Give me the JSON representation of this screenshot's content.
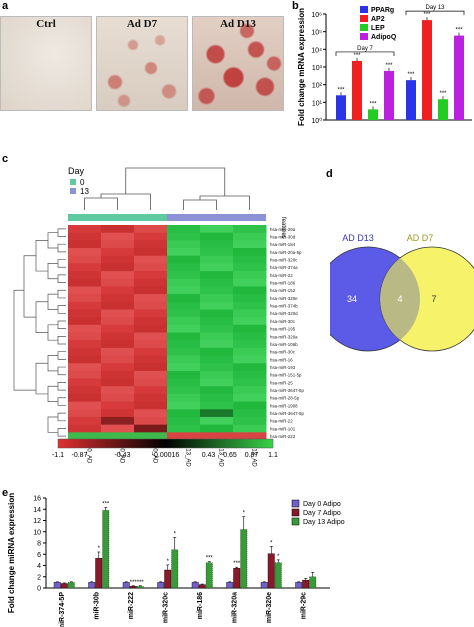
{
  "panels": {
    "a": "a",
    "b": "b",
    "c": "c",
    "d": "d",
    "e": "e"
  },
  "panel_a": {
    "images": [
      {
        "label": "Ctrl",
        "stain": 0.05
      },
      {
        "label": "Ad D7",
        "stain": 0.45
      },
      {
        "label": "Ad D13",
        "stain": 0.85
      }
    ]
  },
  "chart_b": {
    "type": "bar",
    "ylabel": "Fold change mRNA expression",
    "log_scale": true,
    "ylim": [
      1,
      1000000
    ],
    "yticks": [
      "10⁰",
      "10¹",
      "10²",
      "10³",
      "10⁴",
      "10⁵",
      "10⁶"
    ],
    "groups": [
      "Day 7",
      "Day 13"
    ],
    "series": [
      {
        "name": "PPARg",
        "color": "#2a33e6",
        "values": [
          25,
          180
        ]
      },
      {
        "name": "AP2",
        "color": "#f02020",
        "values": [
          2200,
          450000
        ]
      },
      {
        "name": "LEP",
        "color": "#22cc22",
        "values": [
          4,
          15
        ]
      },
      {
        "name": "AdipoQ",
        "color": "#bb22dd",
        "values": [
          600,
          60000
        ]
      }
    ],
    "sig": "***"
  },
  "panel_c": {
    "legend_title": "Day",
    "legend": [
      {
        "label": "0",
        "color": "#5fc9a0"
      },
      {
        "label": "13",
        "color": "#8b93d6"
      }
    ],
    "features_label": "features",
    "columns": [
      "D0_AD",
      "D0_AD",
      "D0_AD",
      "D13_AD",
      "D13_AD",
      "D13_AD"
    ],
    "rows": [
      "hsa-miR-29a",
      "hsa-miR-30d",
      "hsa-miR-184",
      "hsa-miR-20a-5p",
      "hsa-miR-320c",
      "hsa-miR-374a",
      "hsa-miR-22",
      "hsa-miR-186",
      "hsa-miR-152",
      "hsa-miR-320e",
      "hsa-miR-374b",
      "hsa-miR-320d",
      "hsa-miR-30c",
      "hsa-miR-195",
      "hsa-miR-320a",
      "hsa-miR-106b",
      "hsa-miR-30c",
      "hsa-miR-16",
      "hsa-miR-193",
      "hsa-miR-151-5p",
      "hsa-miR-25",
      "hsa-miR-3647-5p",
      "hsa-miR-28-5p",
      "hsa-miR-1908",
      "hsa-miR-3647-5p",
      "hsa-miR-22",
      "hsa-miR-101",
      "hsa-miR-222"
    ],
    "colorbar_ticks": [
      "-1.1",
      "-0.87",
      "-0.43",
      "-0.00016",
      "0.43",
      "0.65",
      "0.87",
      "1.1"
    ]
  },
  "panel_d": {
    "left_label": "AD D13",
    "right_label": "AD D7",
    "left_only": "34",
    "both": "4",
    "right_only": "7"
  },
  "chart_e": {
    "type": "bar",
    "ylabel": "Fold change miRNA expression",
    "ylim": [
      0,
      16
    ],
    "yticks": [
      "0",
      "2",
      "4",
      "6",
      "8",
      "10",
      "12",
      "14",
      "16"
    ],
    "categories": [
      "miR-374-5P",
      "miR-30b",
      "miR-222",
      "miR-320c",
      "miR-186",
      "miR-320a",
      "miR-320e",
      "miR-29c"
    ],
    "series": [
      {
        "name": "Day 0 Adipo",
        "color": "#7060c8",
        "values": [
          1,
          1,
          1,
          1,
          1,
          1,
          1,
          1
        ],
        "errors": [
          0.1,
          0.1,
          0.1,
          0.1,
          0.1,
          0.1,
          0.1,
          0.1
        ]
      },
      {
        "name": "Day 7 Adipo",
        "color": "#8a1a2a",
        "values": [
          0.8,
          5.3,
          0.3,
          3.2,
          0.6,
          3.5,
          6.1,
          1.4
        ],
        "errors": [
          0.1,
          1.1,
          0.1,
          0.9,
          0.1,
          0.2,
          1.3,
          0.3
        ]
      },
      {
        "name": "Day 13 Adipo",
        "color": "#3a9a3a",
        "values": [
          1.0,
          13.8,
          0.3,
          6.8,
          4.5,
          10.4,
          4.5,
          2.0
        ],
        "errors": [
          0.1,
          0.5,
          0.1,
          2.2,
          0.2,
          2.3,
          0.5,
          0.8
        ]
      }
    ],
    "marks": [
      [
        "",
        "",
        ""
      ],
      [
        "",
        "*",
        "***"
      ],
      [
        "",
        "***",
        "***"
      ],
      [
        "",
        "*",
        "*"
      ],
      [
        "",
        "",
        "***"
      ],
      [
        "",
        "***",
        "*"
      ],
      [
        "",
        "*",
        "*"
      ],
      [
        "",
        "",
        ""
      ]
    ]
  }
}
